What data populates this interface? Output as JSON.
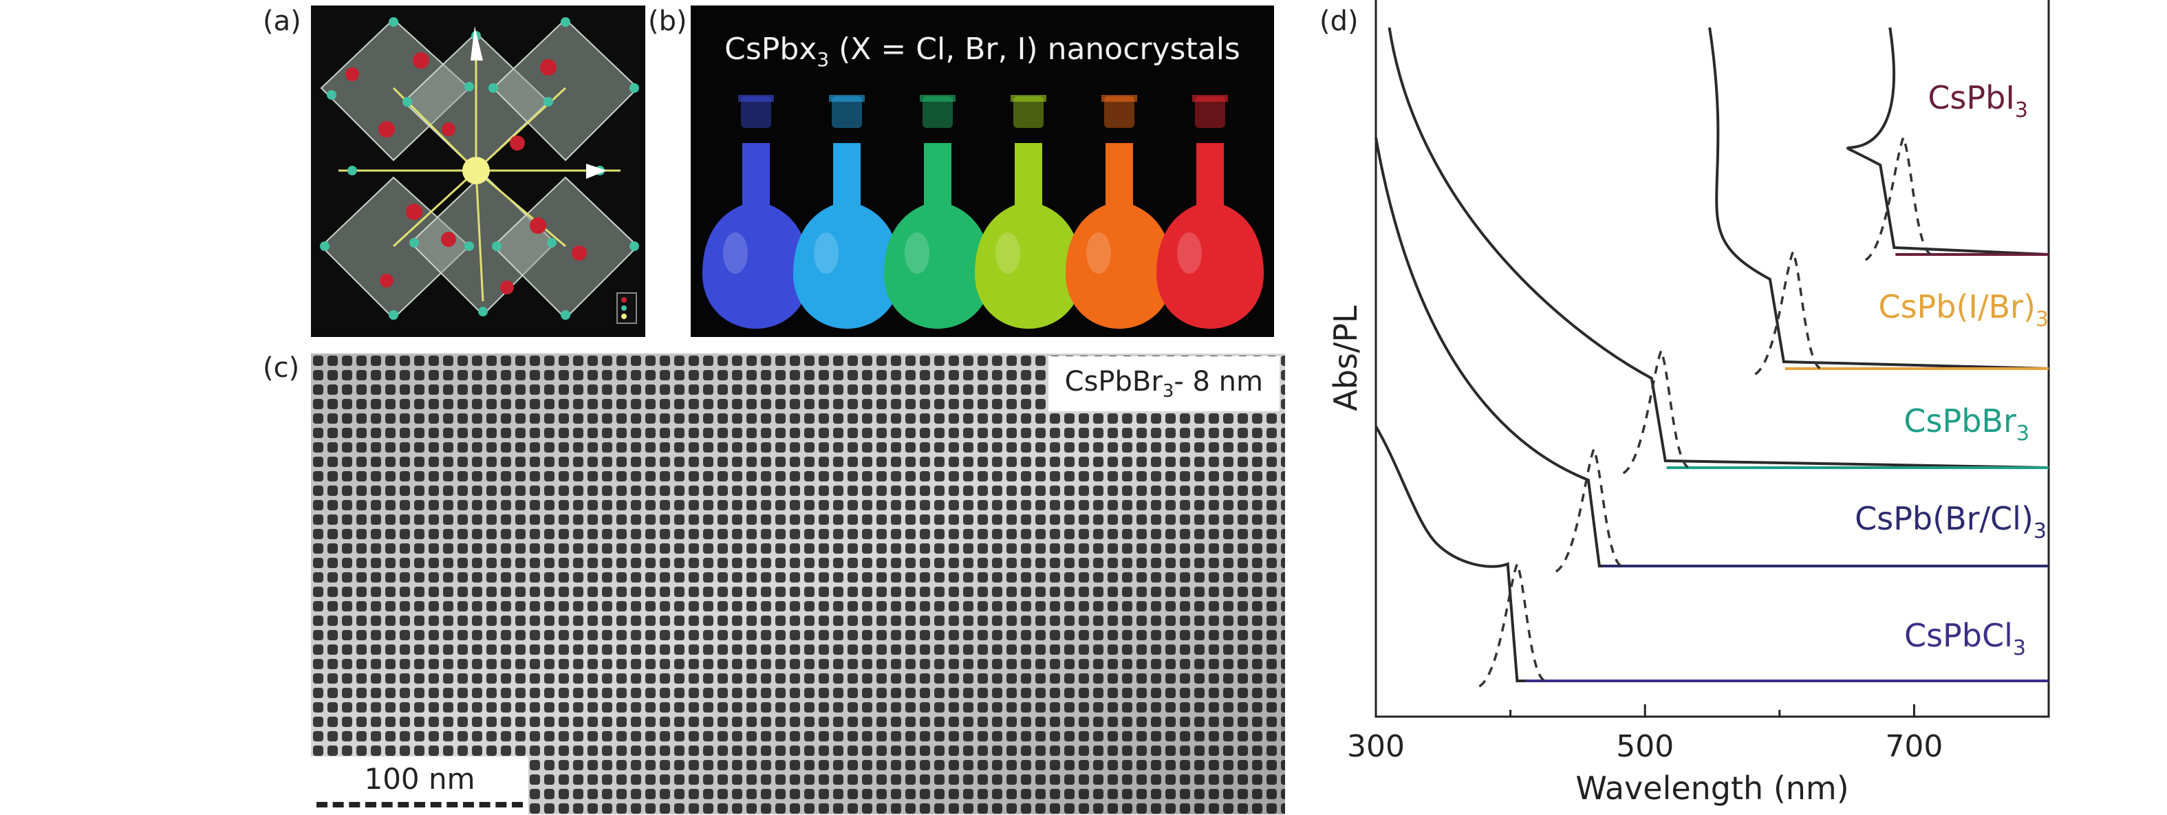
{
  "labels": {
    "a": "(a)",
    "b": "(b)",
    "c": "(c)",
    "d": "(d)"
  },
  "panel_b": {
    "title_main": "CsPbx",
    "title_sub": "3",
    "title_rest": " (X = Cl, Br, I) nanocrystals",
    "flask_colors": [
      "#3b4bd8",
      "#27a6e8",
      "#22b86a",
      "#9fcf1e",
      "#f06a18",
      "#e3262e"
    ]
  },
  "panel_c": {
    "tag_main": "CsPbBr",
    "tag_sub": "3",
    "tag_rest": "- 8 nm",
    "scale_label": "100 nm"
  },
  "chart_data": {
    "type": "line",
    "xlabel": "Wavelength (nm)",
    "ylabel": "Abs/PL",
    "xlim": [
      300,
      800
    ],
    "xticks": [
      300,
      500,
      700
    ],
    "series": [
      {
        "name": "CsPbCl",
        "sub": "3",
        "color": "#3b2f86",
        "abs_edge": 405,
        "pl_peak": 405
      },
      {
        "name": "CsPb(Br/Cl)",
        "sub": "3",
        "color": "#2c2a6e",
        "abs_edge": 462,
        "pl_peak": 462
      },
      {
        "name": "CsPbBr",
        "sub": "3",
        "color": "#1e9e86",
        "abs_edge": 510,
        "pl_peak": 512
      },
      {
        "name": "CsPb(I/Br)",
        "sub": "3",
        "color": "#e3a43a",
        "abs_edge": 598,
        "pl_peak": 610
      },
      {
        "name": "CsPbI",
        "sub": "3",
        "color": "#6a1f3a",
        "abs_edge": 680,
        "pl_peak": 692
      }
    ]
  }
}
